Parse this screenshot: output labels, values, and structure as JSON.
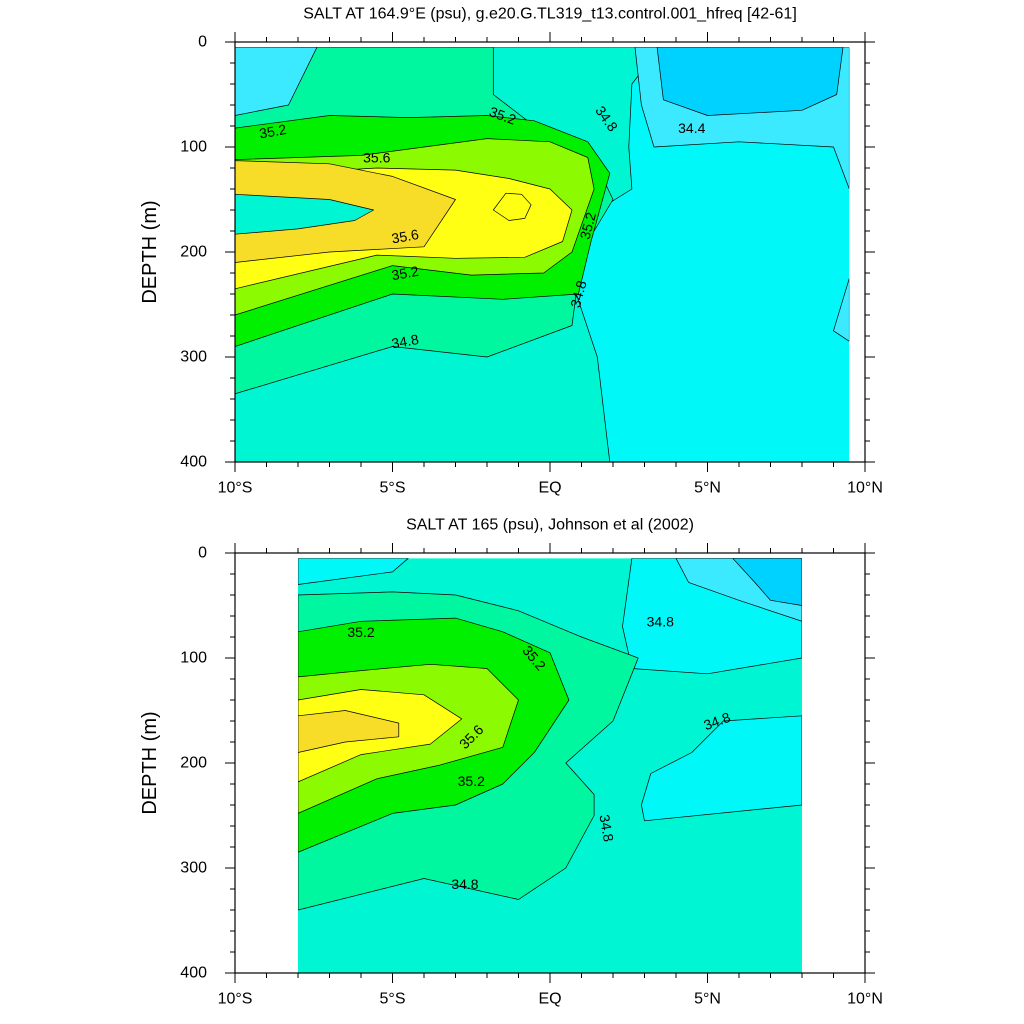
{
  "chart_data": [
    {
      "type": "contour",
      "title": "SALT AT 164.9°E (psu), g.e20.G.TL319_t13.control.001_hfreq [42-61]",
      "ylabel": "DEPTH (m)",
      "xlabel": "",
      "xlim": [
        -10,
        10
      ],
      "ylim": [
        0,
        400
      ],
      "y_inverted": true,
      "x_ticks": [
        {
          "v": -10,
          "label": "10°S"
        },
        {
          "v": -5,
          "label": "5°S"
        },
        {
          "v": 0,
          "label": "EQ"
        },
        {
          "v": 5,
          "label": "5°N"
        },
        {
          "v": 10,
          "label": "10°N"
        }
      ],
      "y_ticks": [
        0,
        100,
        200,
        300,
        400
      ],
      "data_extent": {
        "x": [
          -10,
          9.5
        ],
        "y": [
          5,
          400
        ]
      },
      "background_value": 34.6,
      "colors": {
        "34.2": "#00d2ff",
        "34.4": "#3ceaff",
        "34.6": "#00f8f8",
        "34.8": "#00f5d2",
        "35.0": "#00f7a0",
        "35.2": "#00f000",
        "35.4": "#8cfa00",
        "35.6": "#ffff14",
        "35.8": "#f7dc28"
      },
      "regions": [
        {
          "value": 34.8,
          "pts": [
            [
              -10,
              5
            ],
            [
              3.5,
              5
            ],
            [
              2.6,
              40
            ],
            [
              2.5,
              100
            ],
            [
              2.6,
              140
            ],
            [
              1,
              170
            ],
            [
              0.5,
              210
            ],
            [
              1.5,
              300
            ],
            [
              1.9,
              400
            ],
            [
              -10,
              400
            ]
          ]
        },
        {
          "value": 35.0,
          "pts": [
            [
              -8,
              5
            ],
            [
              -1.8,
              5
            ],
            [
              -1.8,
              50
            ],
            [
              -0.5,
              80
            ],
            [
              1.2,
              100
            ],
            [
              2.0,
              150
            ],
            [
              1.0,
              200
            ],
            [
              0.7,
              270
            ],
            [
              -2,
              300
            ],
            [
              -5,
              290
            ],
            [
              -10,
              335
            ],
            [
              -10,
              10
            ]
          ]
        },
        {
          "value": 35.2,
          "pts": [
            [
              -10,
              82
            ],
            [
              -7,
              70
            ],
            [
              -4.5,
              72
            ],
            [
              -2,
              70
            ],
            [
              -0.5,
              75
            ],
            [
              1.2,
              95
            ],
            [
              1.9,
              125
            ],
            [
              1.3,
              190
            ],
            [
              0.9,
              240
            ],
            [
              -1.5,
              245
            ],
            [
              -5,
              240
            ],
            [
              -10,
              290
            ]
          ]
        },
        {
          "value": 35.4,
          "pts": [
            [
              -10,
              112
            ],
            [
              -6,
              108
            ],
            [
              -4,
              100
            ],
            [
              -2,
              92
            ],
            [
              0,
              95
            ],
            [
              1.2,
              110
            ],
            [
              1.4,
              140
            ],
            [
              0.7,
              200
            ],
            [
              -0.2,
              220
            ],
            [
              -2.5,
              222
            ],
            [
              -5,
              213
            ],
            [
              -10,
              260
            ]
          ]
        },
        {
          "value": 35.6,
          "pts": [
            [
              -10,
              128
            ],
            [
              -5.5,
              120
            ],
            [
              -3,
              122
            ],
            [
              -1.3,
              130
            ],
            [
              0,
              140
            ],
            [
              0.7,
              160
            ],
            [
              0.4,
              190
            ],
            [
              -0.8,
              205
            ],
            [
              -3,
              206
            ],
            [
              -5.5,
              203
            ],
            [
              -10,
              235
            ]
          ]
        },
        {
          "value": 35.8,
          "pts": [
            [
              -10,
              113
            ],
            [
              -7,
              116
            ],
            [
              -5,
              128
            ],
            [
              -3,
              150
            ],
            [
              -4,
              195
            ],
            [
              -7,
              200
            ],
            [
              -10,
              210
            ]
          ]
        },
        {
          "value": 35.6,
          "pts": [
            [
              -1.8,
              160
            ],
            [
              -1.4,
              144
            ],
            [
              -0.9,
              145
            ],
            [
              -0.6,
              155
            ],
            [
              -0.8,
              168
            ],
            [
              -1.3,
              170
            ]
          ]
        },
        {
          "value": 36.0,
          "pts": [
            [
              -10,
              145
            ],
            [
              -7,
              150
            ],
            [
              -5.6,
              160
            ],
            [
              -6.2,
              170
            ],
            [
              -8,
              178
            ],
            [
              -10,
              183
            ]
          ]
        },
        {
          "value": 34.4,
          "pts": [
            [
              -10,
              5
            ],
            [
              -7.4,
              5
            ],
            [
              -8.3,
              60
            ],
            [
              -10,
              70
            ]
          ]
        },
        {
          "value": 34.4,
          "pts": [
            [
              2.7,
              5
            ],
            [
              9.5,
              5
            ],
            [
              9.5,
              140
            ],
            [
              9,
              100
            ],
            [
              6,
              95
            ],
            [
              3.3,
              100
            ],
            [
              2.9,
              60
            ]
          ]
        },
        {
          "value": 34.2,
          "pts": [
            [
              3.4,
              5
            ],
            [
              9.3,
              5
            ],
            [
              9.1,
              50
            ],
            [
              8,
              65
            ],
            [
              5,
              70
            ],
            [
              3.6,
              55
            ]
          ]
        },
        {
          "value": 34.4,
          "pts": [
            [
              9.5,
              225
            ],
            [
              9.0,
              275
            ],
            [
              9.5,
              285
            ]
          ]
        }
      ],
      "contour_labels": [
        {
          "text": "35.2",
          "x": -8.8,
          "y": 85,
          "rotate": -10
        },
        {
          "text": "35.2",
          "x": -1.5,
          "y": 70,
          "rotate": 20
        },
        {
          "text": "34.8",
          "x": 1.8,
          "y": 73,
          "rotate": 55
        },
        {
          "text": "34.4",
          "x": 4.5,
          "y": 82,
          "rotate": 0
        },
        {
          "text": "35.6",
          "x": -5.5,
          "y": 110,
          "rotate": 0
        },
        {
          "text": "35.6",
          "x": -4.6,
          "y": 185,
          "rotate": -10
        },
        {
          "text": "35.2",
          "x": 1.2,
          "y": 175,
          "rotate": -75
        },
        {
          "text": "35.2",
          "x": -4.6,
          "y": 220,
          "rotate": -10
        },
        {
          "text": "34.8",
          "x": 0.9,
          "y": 240,
          "rotate": -75
        },
        {
          "text": "34.8",
          "x": -4.6,
          "y": 285,
          "rotate": -10
        }
      ]
    },
    {
      "type": "contour",
      "title": "SALT AT 165 (psu), Johnson et al (2002)",
      "ylabel": "DEPTH (m)",
      "xlabel": "",
      "xlim": [
        -10,
        10
      ],
      "ylim": [
        0,
        400
      ],
      "y_inverted": true,
      "x_ticks": [
        {
          "v": -10,
          "label": "10°S"
        },
        {
          "v": -5,
          "label": "5°S"
        },
        {
          "v": 0,
          "label": "EQ"
        },
        {
          "v": 5,
          "label": "5°N"
        },
        {
          "v": 10,
          "label": "10°N"
        }
      ],
      "y_ticks": [
        0,
        100,
        200,
        300,
        400
      ],
      "data_extent": {
        "x": [
          -8,
          8
        ],
        "y": [
          5,
          400
        ]
      },
      "background_value": 34.8,
      "colors": {
        "34.2": "#00d2ff",
        "34.4": "#3ceaff",
        "34.6": "#00f8f8",
        "34.8": "#00f5d2",
        "35.0": "#00f7a0",
        "35.2": "#00f000",
        "35.4": "#8cfa00",
        "35.6": "#ffff14",
        "35.8": "#f7dc28"
      },
      "regions": [
        {
          "value": 34.6,
          "pts": [
            [
              -8,
              5
            ],
            [
              -4.5,
              5
            ],
            [
              -5,
              18
            ],
            [
              -8,
              30
            ]
          ]
        },
        {
          "value": 34.6,
          "pts": [
            [
              2.6,
              5
            ],
            [
              8,
              5
            ],
            [
              8,
              100
            ],
            [
              5,
              115
            ],
            [
              2.6,
              110
            ],
            [
              2.3,
              70
            ]
          ]
        },
        {
          "value": 34.6,
          "pts": [
            [
              8,
              155
            ],
            [
              5.5,
              160
            ],
            [
              4.5,
              190
            ],
            [
              3.2,
              210
            ],
            [
              2.9,
              240
            ],
            [
              3,
              255
            ],
            [
              8,
              240
            ]
          ]
        },
        {
          "value": 34.4,
          "pts": [
            [
              4,
              5
            ],
            [
              8,
              5
            ],
            [
              8,
              65
            ],
            [
              6,
              45
            ],
            [
              4.4,
              28
            ]
          ]
        },
        {
          "value": 34.2,
          "pts": [
            [
              5.8,
              5
            ],
            [
              8,
              5
            ],
            [
              8,
              50
            ],
            [
              7,
              45
            ],
            [
              6.5,
              28
            ]
          ]
        },
        {
          "value": 35.0,
          "pts": [
            [
              -8,
              40
            ],
            [
              -5,
              37
            ],
            [
              -3,
              40
            ],
            [
              -1,
              55
            ],
            [
              1,
              80
            ],
            [
              2.8,
              100
            ],
            [
              2.0,
              160
            ],
            [
              0.5,
              200
            ],
            [
              1.4,
              230
            ],
            [
              1.4,
              250
            ],
            [
              0.5,
              300
            ],
            [
              -1,
              330
            ],
            [
              -4,
              310
            ],
            [
              -8,
              340
            ]
          ]
        },
        {
          "value": 35.2,
          "pts": [
            [
              -8,
              75
            ],
            [
              -6,
              65
            ],
            [
              -3,
              62
            ],
            [
              -1.5,
              75
            ],
            [
              0,
              95
            ],
            [
              0.6,
              140
            ],
            [
              -0.5,
              190
            ],
            [
              -1.5,
              220
            ],
            [
              -3,
              240
            ],
            [
              -5,
              248
            ],
            [
              -8,
              285
            ]
          ]
        },
        {
          "value": 35.4,
          "pts": [
            [
              -8,
              118
            ],
            [
              -6,
              112
            ],
            [
              -3.8,
              106
            ],
            [
              -2,
              110
            ],
            [
              -1,
              140
            ],
            [
              -1.5,
              185
            ],
            [
              -3.5,
              202
            ],
            [
              -5.5,
              215
            ],
            [
              -8,
              248
            ]
          ]
        },
        {
          "value": 35.6,
          "pts": [
            [
              -8,
              140
            ],
            [
              -6,
              130
            ],
            [
              -4,
              135
            ],
            [
              -2.8,
              158
            ],
            [
              -3.8,
              182
            ],
            [
              -6,
              192
            ],
            [
              -8,
              218
            ]
          ]
        },
        {
          "value": 35.8,
          "pts": [
            [
              -8,
              155
            ],
            [
              -6.5,
              150
            ],
            [
              -4.8,
              162
            ],
            [
              -4.8,
              175
            ],
            [
              -6.5,
              180
            ],
            [
              -8,
              190
            ]
          ]
        }
      ],
      "contour_labels": [
        {
          "text": "35.2",
          "x": -6,
          "y": 75,
          "rotate": 0
        },
        {
          "text": "35.2",
          "x": -0.5,
          "y": 100,
          "rotate": 50
        },
        {
          "text": "34.8",
          "x": 3.5,
          "y": 65,
          "rotate": 0
        },
        {
          "text": "34.8",
          "x": 5.3,
          "y": 160,
          "rotate": -20
        },
        {
          "text": "35.6",
          "x": -2.5,
          "y": 175,
          "rotate": -45
        },
        {
          "text": "35.2",
          "x": -2.5,
          "y": 217,
          "rotate": 0
        },
        {
          "text": "34.8",
          "x": 1.8,
          "y": 262,
          "rotate": 80
        },
        {
          "text": "34.8",
          "x": -2.7,
          "y": 315,
          "rotate": 0
        }
      ]
    }
  ]
}
